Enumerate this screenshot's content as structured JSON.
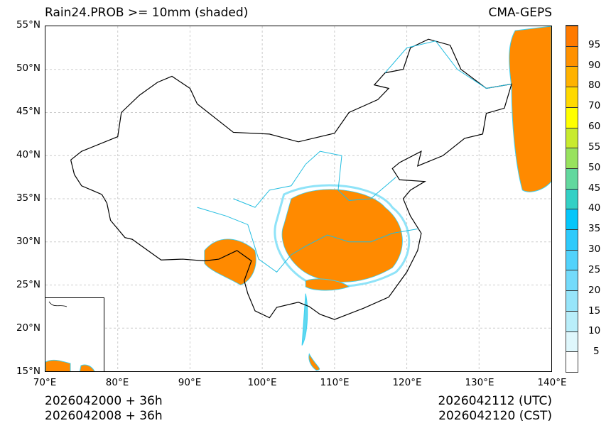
{
  "title_left": "Rain24.PROB >= 10mm (shaded)",
  "title_right": "CMA-GEPS",
  "lat_ticks": [
    "55°N",
    "50°N",
    "45°N",
    "40°N",
    "35°N",
    "30°N",
    "25°N",
    "20°N",
    "15°N"
  ],
  "lon_ticks": [
    "70°E",
    "80°E",
    "90°E",
    "100°E",
    "110°E",
    "120°E",
    "130°E",
    "140°E"
  ],
  "init_utc": "2026042000 + 36h",
  "init_cst": "2026042008 + 36h",
  "valid_utc": "2026042112 (UTC)",
  "valid_cst": "2026042120 (CST)",
  "colorbar": {
    "labels": [
      "5",
      "10",
      "15",
      "20",
      "25",
      "30",
      "35",
      "40",
      "45",
      "50",
      "55",
      "60",
      "70",
      "80",
      "90",
      "95"
    ],
    "colors": [
      "#ffffff",
      "#dff7fc",
      "#b9eefa",
      "#97e5fa",
      "#74dbfb",
      "#52d2fb",
      "#2ecafb",
      "#05c6fa",
      "#33d0c5",
      "#62d89e",
      "#98e25e",
      "#c8ea2e",
      "#ffff00",
      "#ffd900",
      "#ffb200",
      "#ff9100",
      "#ff7a00"
    ]
  }
}
